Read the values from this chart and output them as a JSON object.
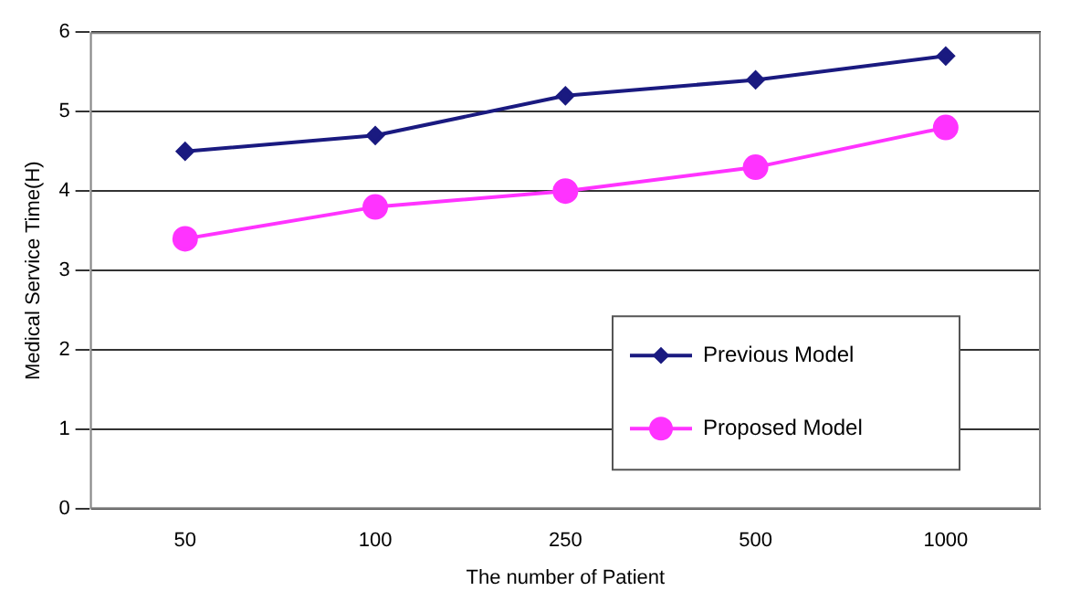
{
  "chart_data": {
    "type": "line",
    "xlabel": "The number of Patient",
    "ylabel": "Medical Service Time(H)",
    "categories": [
      "50",
      "100",
      "250",
      "500",
      "1000"
    ],
    "series": [
      {
        "name": "Previous Model",
        "color": "#1a1a80",
        "marker": "diamond",
        "values": [
          4.5,
          4.7,
          5.2,
          5.4,
          5.7
        ]
      },
      {
        "name": "Proposed Model",
        "color": "#ff33ff",
        "marker": "circle",
        "values": [
          3.4,
          3.8,
          4.0,
          4.3,
          4.8
        ]
      }
    ],
    "ylim": [
      0,
      6
    ],
    "yticks": [
      0,
      1,
      2,
      3,
      4,
      5,
      6
    ],
    "grid": "y",
    "legend": "bottom right",
    "line_style": "solid"
  }
}
